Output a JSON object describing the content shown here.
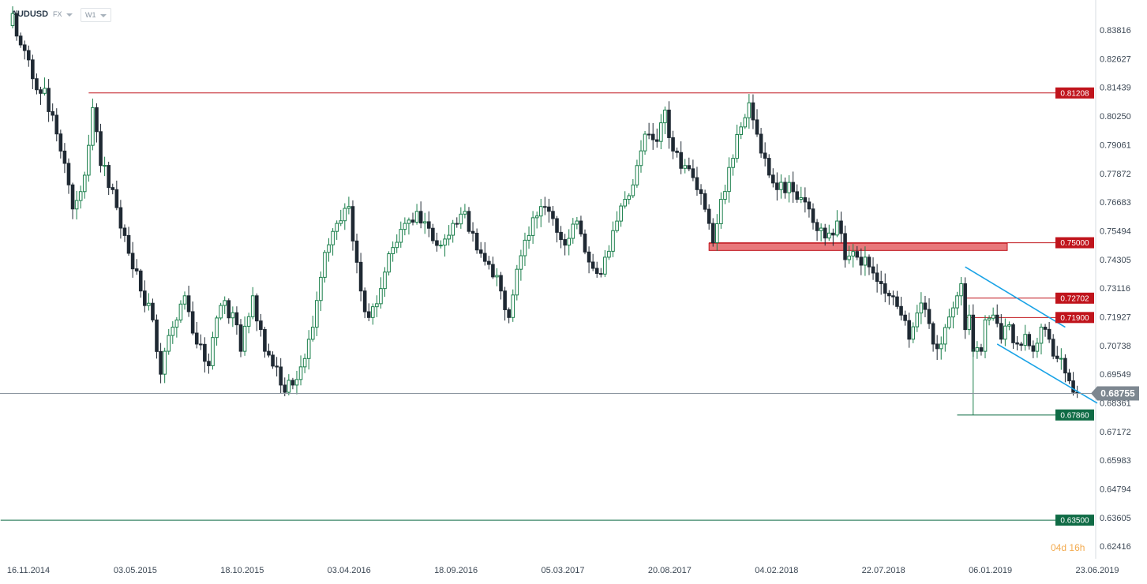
{
  "header": {
    "symbol": "AUDUSD",
    "market": "FX",
    "interval": "W1"
  },
  "countdown": {
    "days": "04",
    "d": "d",
    "hours": "16",
    "h": "h"
  },
  "chart_data": {
    "type": "candlestick",
    "y_axis": {
      "ticks": [
        "0.83816",
        "0.82627",
        "0.81439",
        "0.80250",
        "0.79061",
        "0.77872",
        "0.76683",
        "0.75494",
        "0.74305",
        "0.73116",
        "0.71927",
        "0.70738",
        "0.69549",
        "0.68361",
        "0.67172",
        "0.65983",
        "0.64794",
        "0.63605",
        "0.62416"
      ],
      "range": [
        0.619,
        0.848
      ]
    },
    "x_axis": {
      "ticks": [
        "16.11.2014",
        "03.05.2015",
        "18.10.2015",
        "03.04.2016",
        "18.09.2016",
        "05.03.2017",
        "20.08.2017",
        "04.02.2018",
        "22.07.2018",
        "06.01.2019",
        "23.06.2019"
      ]
    },
    "current_price": "0.68755",
    "levels": [
      {
        "label": "0.81208",
        "value": 0.81208,
        "color": "#c0141c",
        "from_week": 19
      },
      {
        "label": "0.75000",
        "value": 0.75,
        "color": "#c0141c",
        "from_week": 174,
        "zone": [
          0.7468,
          0.7498
        ]
      },
      {
        "label": "0.72702",
        "value": 0.72702,
        "color": "#c0141c",
        "from_week": 238
      },
      {
        "label": "0.71900",
        "value": 0.719,
        "color": "#c0141c",
        "from_week": 238
      },
      {
        "label": "0.67860",
        "value": 0.6786,
        "color": "#0f6b45",
        "from_week": 236
      },
      {
        "label": "0.63500",
        "value": 0.635,
        "color": "#0f6b45",
        "from_week": -3
      }
    ],
    "channel": {
      "color": "#1aa3e6",
      "upper": [
        [
          238,
          0.74
        ],
        [
          263,
          0.715
        ]
      ],
      "lower": [
        [
          246,
          0.708
        ],
        [
          271,
          0.6835
        ]
      ]
    },
    "anchors": [
      [
        0,
        0.845
      ],
      [
        2,
        0.832
      ],
      [
        5,
        0.818
      ],
      [
        8,
        0.814
      ],
      [
        12,
        0.788
      ],
      [
        15,
        0.764
      ],
      [
        18,
        0.778
      ],
      [
        20,
        0.806
      ],
      [
        22,
        0.782
      ],
      [
        25,
        0.772
      ],
      [
        28,
        0.753
      ],
      [
        32,
        0.73
      ],
      [
        35,
        0.718
      ],
      [
        37,
        0.6955
      ],
      [
        40,
        0.715
      ],
      [
        43,
        0.728
      ],
      [
        46,
        0.708
      ],
      [
        49,
        0.699
      ],
      [
        52,
        0.724
      ],
      [
        55,
        0.721
      ],
      [
        57,
        0.705
      ],
      [
        60,
        0.728
      ],
      [
        63,
        0.705
      ],
      [
        66,
        0.6985
      ],
      [
        68,
        0.688
      ],
      [
        70,
        0.691
      ],
      [
        73,
        0.702
      ],
      [
        75,
        0.715
      ],
      [
        78,
        0.746
      ],
      [
        81,
        0.758
      ],
      [
        84,
        0.765
      ],
      [
        87,
        0.73
      ],
      [
        89,
        0.719
      ],
      [
        92,
        0.731
      ],
      [
        95,
        0.748
      ],
      [
        98,
        0.758
      ],
      [
        101,
        0.763
      ],
      [
        104,
        0.756
      ],
      [
        107,
        0.749
      ],
      [
        110,
        0.758
      ],
      [
        113,
        0.763
      ],
      [
        116,
        0.747
      ],
      [
        119,
        0.741
      ],
      [
        122,
        0.73
      ],
      [
        124,
        0.719
      ],
      [
        126,
        0.739
      ],
      [
        129,
        0.753
      ],
      [
        132,
        0.765
      ],
      [
        135,
        0.76
      ],
      [
        138,
        0.749
      ],
      [
        141,
        0.759
      ],
      [
        144,
        0.742
      ],
      [
        147,
        0.737
      ],
      [
        150,
        0.755
      ],
      [
        153,
        0.768
      ],
      [
        156,
        0.782
      ],
      [
        158,
        0.795
      ],
      [
        161,
        0.792
      ],
      [
        163,
        0.805
      ],
      [
        165,
        0.788
      ],
      [
        168,
        0.782
      ],
      [
        171,
        0.772
      ],
      [
        174,
        0.758
      ],
      [
        175,
        0.75
      ],
      [
        177,
        0.768
      ],
      [
        180,
        0.785
      ],
      [
        182,
        0.798
      ],
      [
        184,
        0.808
      ],
      [
        186,
        0.795
      ],
      [
        188,
        0.785
      ],
      [
        191,
        0.772
      ],
      [
        194,
        0.775
      ],
      [
        196,
        0.768
      ],
      [
        199,
        0.764
      ],
      [
        201,
        0.755
      ],
      [
        204,
        0.754
      ],
      [
        206,
        0.759
      ],
      [
        208,
        0.743
      ],
      [
        211,
        0.744
      ],
      [
        214,
        0.74
      ],
      [
        217,
        0.733
      ],
      [
        219,
        0.728
      ],
      [
        222,
        0.72
      ],
      [
        224,
        0.71
      ],
      [
        227,
        0.725
      ],
      [
        230,
        0.708
      ],
      [
        232,
        0.708
      ],
      [
        235,
        0.723
      ],
      [
        237,
        0.733
      ],
      [
        238,
        0.714
      ],
      [
        239,
        0.72
      ],
      [
        240,
        0.705
      ],
      [
        242,
        0.705
      ],
      [
        243,
        0.718
      ],
      [
        245,
        0.72
      ],
      [
        247,
        0.71
      ],
      [
        249,
        0.716
      ],
      [
        251,
        0.708
      ],
      [
        253,
        0.712
      ],
      [
        255,
        0.705
      ],
      [
        257,
        0.715
      ],
      [
        259,
        0.71
      ],
      [
        261,
        0.702
      ],
      [
        263,
        0.696
      ],
      [
        265,
        0.688
      ],
      [
        266,
        0.6876
      ]
    ]
  }
}
